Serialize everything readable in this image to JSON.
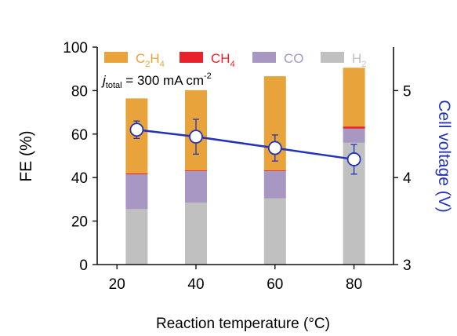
{
  "chart_data": {
    "type": "bar",
    "subtype": "stacked-bar-with-line-secondary-axis",
    "categories": [
      25,
      40,
      60,
      80
    ],
    "x_ticks": [
      "20",
      "40",
      "60",
      "80"
    ],
    "xlabel": "Reaction temperature (°C)",
    "xlim": [
      15,
      90
    ],
    "ylabel": "FE (%)",
    "ylim": [
      0,
      100
    ],
    "y_ticks": [
      "0",
      "20",
      "40",
      "60",
      "80",
      "100"
    ],
    "y2label": "Cell voltage (V)",
    "y2lim": [
      3,
      5.5
    ],
    "y2_ticks": [
      "3",
      "4",
      "5"
    ],
    "annotation": {
      "prefix": "j",
      "subscript": "total",
      "text": " = 300 mA cm",
      "superscript": "-2"
    },
    "series": [
      {
        "name": "H2",
        "label_main": "H",
        "label_sub": "2",
        "color": "#c0c0c0",
        "values": [
          25.5,
          28.5,
          30.5,
          56
        ]
      },
      {
        "name": "CO",
        "label_main": "CO",
        "label_sub": "",
        "color": "#a897c3",
        "values": [
          16,
          14.5,
          12.5,
          6.5
        ]
      },
      {
        "name": "CH4",
        "label_main": "CH",
        "label_sub": "4",
        "color": "#e8222a",
        "values": [
          0.4,
          0.4,
          0.4,
          1
        ]
      },
      {
        "name": "C2H4",
        "label_main": "C",
        "label_sub": "2",
        "label_main2": "H",
        "label_sub2": "4",
        "color": "#e8a33a",
        "values": [
          34.5,
          36.8,
          43.2,
          27
        ]
      }
    ],
    "line_series": {
      "name": "Cell voltage",
      "color": "#2233bb",
      "x": [
        25,
        40,
        60,
        80
      ],
      "values": [
        4.55,
        4.47,
        4.34,
        4.21
      ],
      "error": [
        0.1,
        0.2,
        0.15,
        0.17
      ]
    },
    "legend_position": "top"
  }
}
